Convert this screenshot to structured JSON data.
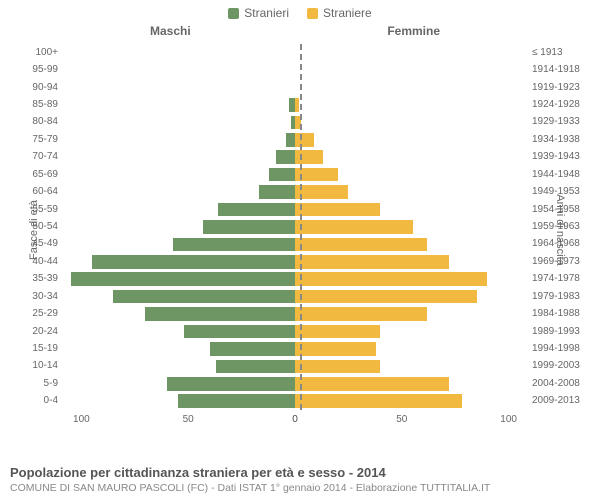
{
  "legend": {
    "male": {
      "label": "Stranieri",
      "color": "#6e9664"
    },
    "female": {
      "label": "Straniere",
      "color": "#f1b940"
    }
  },
  "columns": {
    "left": "Maschi",
    "right": "Femmine"
  },
  "axis": {
    "left_label": "Fasce di età",
    "right_label": "Anni di nascita",
    "xmax": 110,
    "xticks_left": [
      100,
      50,
      0
    ],
    "xticks_right": [
      0,
      50,
      100
    ]
  },
  "background_color": "#ffffff",
  "center_line_color": "#888888",
  "rows": [
    {
      "age": "100+",
      "year": "≤ 1913",
      "m": 0,
      "f": 0
    },
    {
      "age": "95-99",
      "year": "1914-1918",
      "m": 0,
      "f": 0
    },
    {
      "age": "90-94",
      "year": "1919-1923",
      "m": 0,
      "f": 0
    },
    {
      "age": "85-89",
      "year": "1924-1928",
      "m": 3,
      "f": 2
    },
    {
      "age": "80-84",
      "year": "1929-1933",
      "m": 2,
      "f": 3
    },
    {
      "age": "75-79",
      "year": "1934-1938",
      "m": 4,
      "f": 9
    },
    {
      "age": "70-74",
      "year": "1939-1943",
      "m": 9,
      "f": 13
    },
    {
      "age": "65-69",
      "year": "1944-1948",
      "m": 12,
      "f": 20
    },
    {
      "age": "60-64",
      "year": "1949-1953",
      "m": 17,
      "f": 25
    },
    {
      "age": "55-59",
      "year": "1954-1958",
      "m": 36,
      "f": 40
    },
    {
      "age": "50-54",
      "year": "1959-1963",
      "m": 43,
      "f": 55
    },
    {
      "age": "45-49",
      "year": "1964-1968",
      "m": 57,
      "f": 62
    },
    {
      "age": "40-44",
      "year": "1969-1973",
      "m": 95,
      "f": 72
    },
    {
      "age": "35-39",
      "year": "1974-1978",
      "m": 105,
      "f": 90
    },
    {
      "age": "30-34",
      "year": "1979-1983",
      "m": 85,
      "f": 85
    },
    {
      "age": "25-29",
      "year": "1984-1988",
      "m": 70,
      "f": 62
    },
    {
      "age": "20-24",
      "year": "1989-1993",
      "m": 52,
      "f": 40
    },
    {
      "age": "15-19",
      "year": "1994-1998",
      "m": 40,
      "f": 38
    },
    {
      "age": "10-14",
      "year": "1999-2003",
      "m": 37,
      "f": 40
    },
    {
      "age": "5-9",
      "year": "2004-2008",
      "m": 60,
      "f": 72
    },
    {
      "age": "0-4",
      "year": "2009-2013",
      "m": 55,
      "f": 78
    }
  ],
  "footer": {
    "title": "Popolazione per cittadinanza straniera per età e sesso - 2014",
    "subtitle": "COMUNE DI SAN MAURO PASCOLI (FC) - Dati ISTAT 1° gennaio 2014 - Elaborazione TUTTITALIA.IT"
  }
}
